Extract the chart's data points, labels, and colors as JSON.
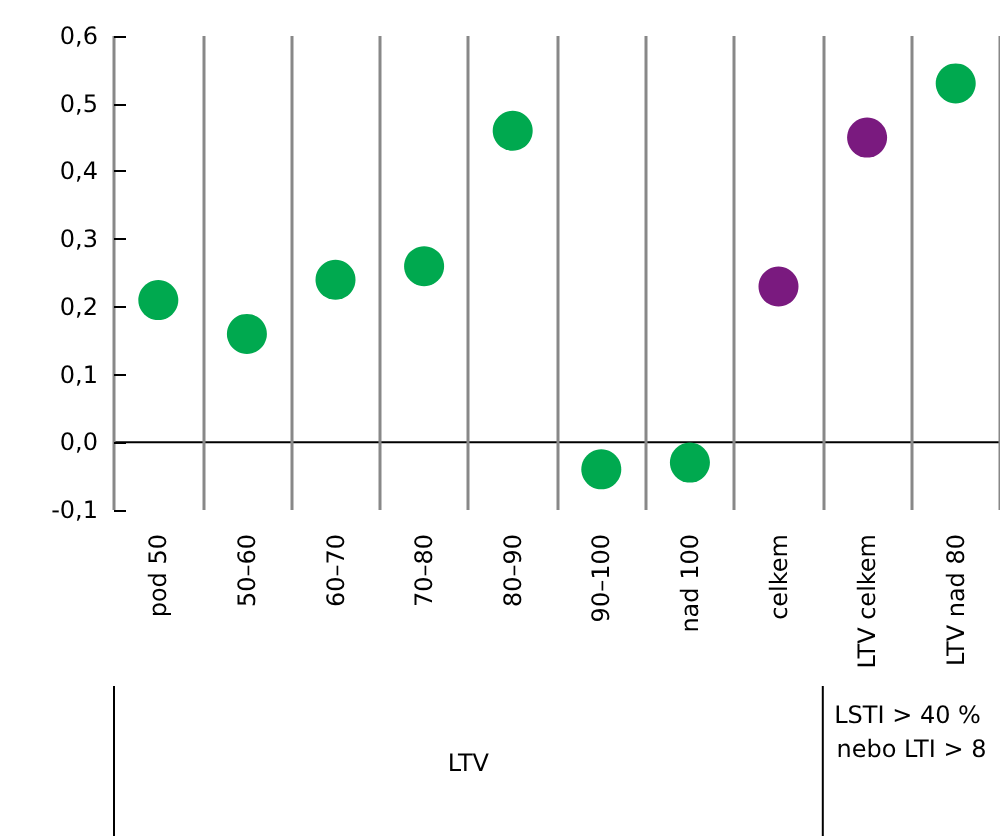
{
  "chart_data": {
    "type": "scatter",
    "categories": [
      "pod 50",
      "50–60",
      "60–70",
      "70–80",
      "80–90",
      "90–100",
      "nad 100",
      "celkem",
      "LTV celkem",
      "LTV nad 80"
    ],
    "values": [
      0.21,
      0.16,
      0.24,
      0.26,
      0.46,
      -0.04,
      -0.03,
      0.23,
      0.45,
      0.53
    ],
    "colors": [
      "#00a94f",
      "#00a94f",
      "#00a94f",
      "#00a94f",
      "#00a94f",
      "#00a94f",
      "#00a94f",
      "#7a1a7f",
      "#7a1a7f",
      "#00a94f"
    ],
    "ylim": [
      -0.1,
      0.6
    ],
    "yticks": [
      {
        "value": -0.1,
        "label": "-0,1"
      },
      {
        "value": 0,
        "label": "0,0"
      },
      {
        "value": 0.1,
        "label": "0,1"
      },
      {
        "value": 0.2,
        "label": "0,2"
      },
      {
        "value": 0.3,
        "label": "0,3"
      },
      {
        "value": 0.4,
        "label": "0,4"
      },
      {
        "value": 0.5,
        "label": "0,5"
      },
      {
        "value": 0.6,
        "label": "0,6"
      }
    ],
    "grid": "x",
    "marker": "circle",
    "annotations": [
      "LTV",
      "LSTI > 40 % nebo LTI > 8"
    ]
  }
}
